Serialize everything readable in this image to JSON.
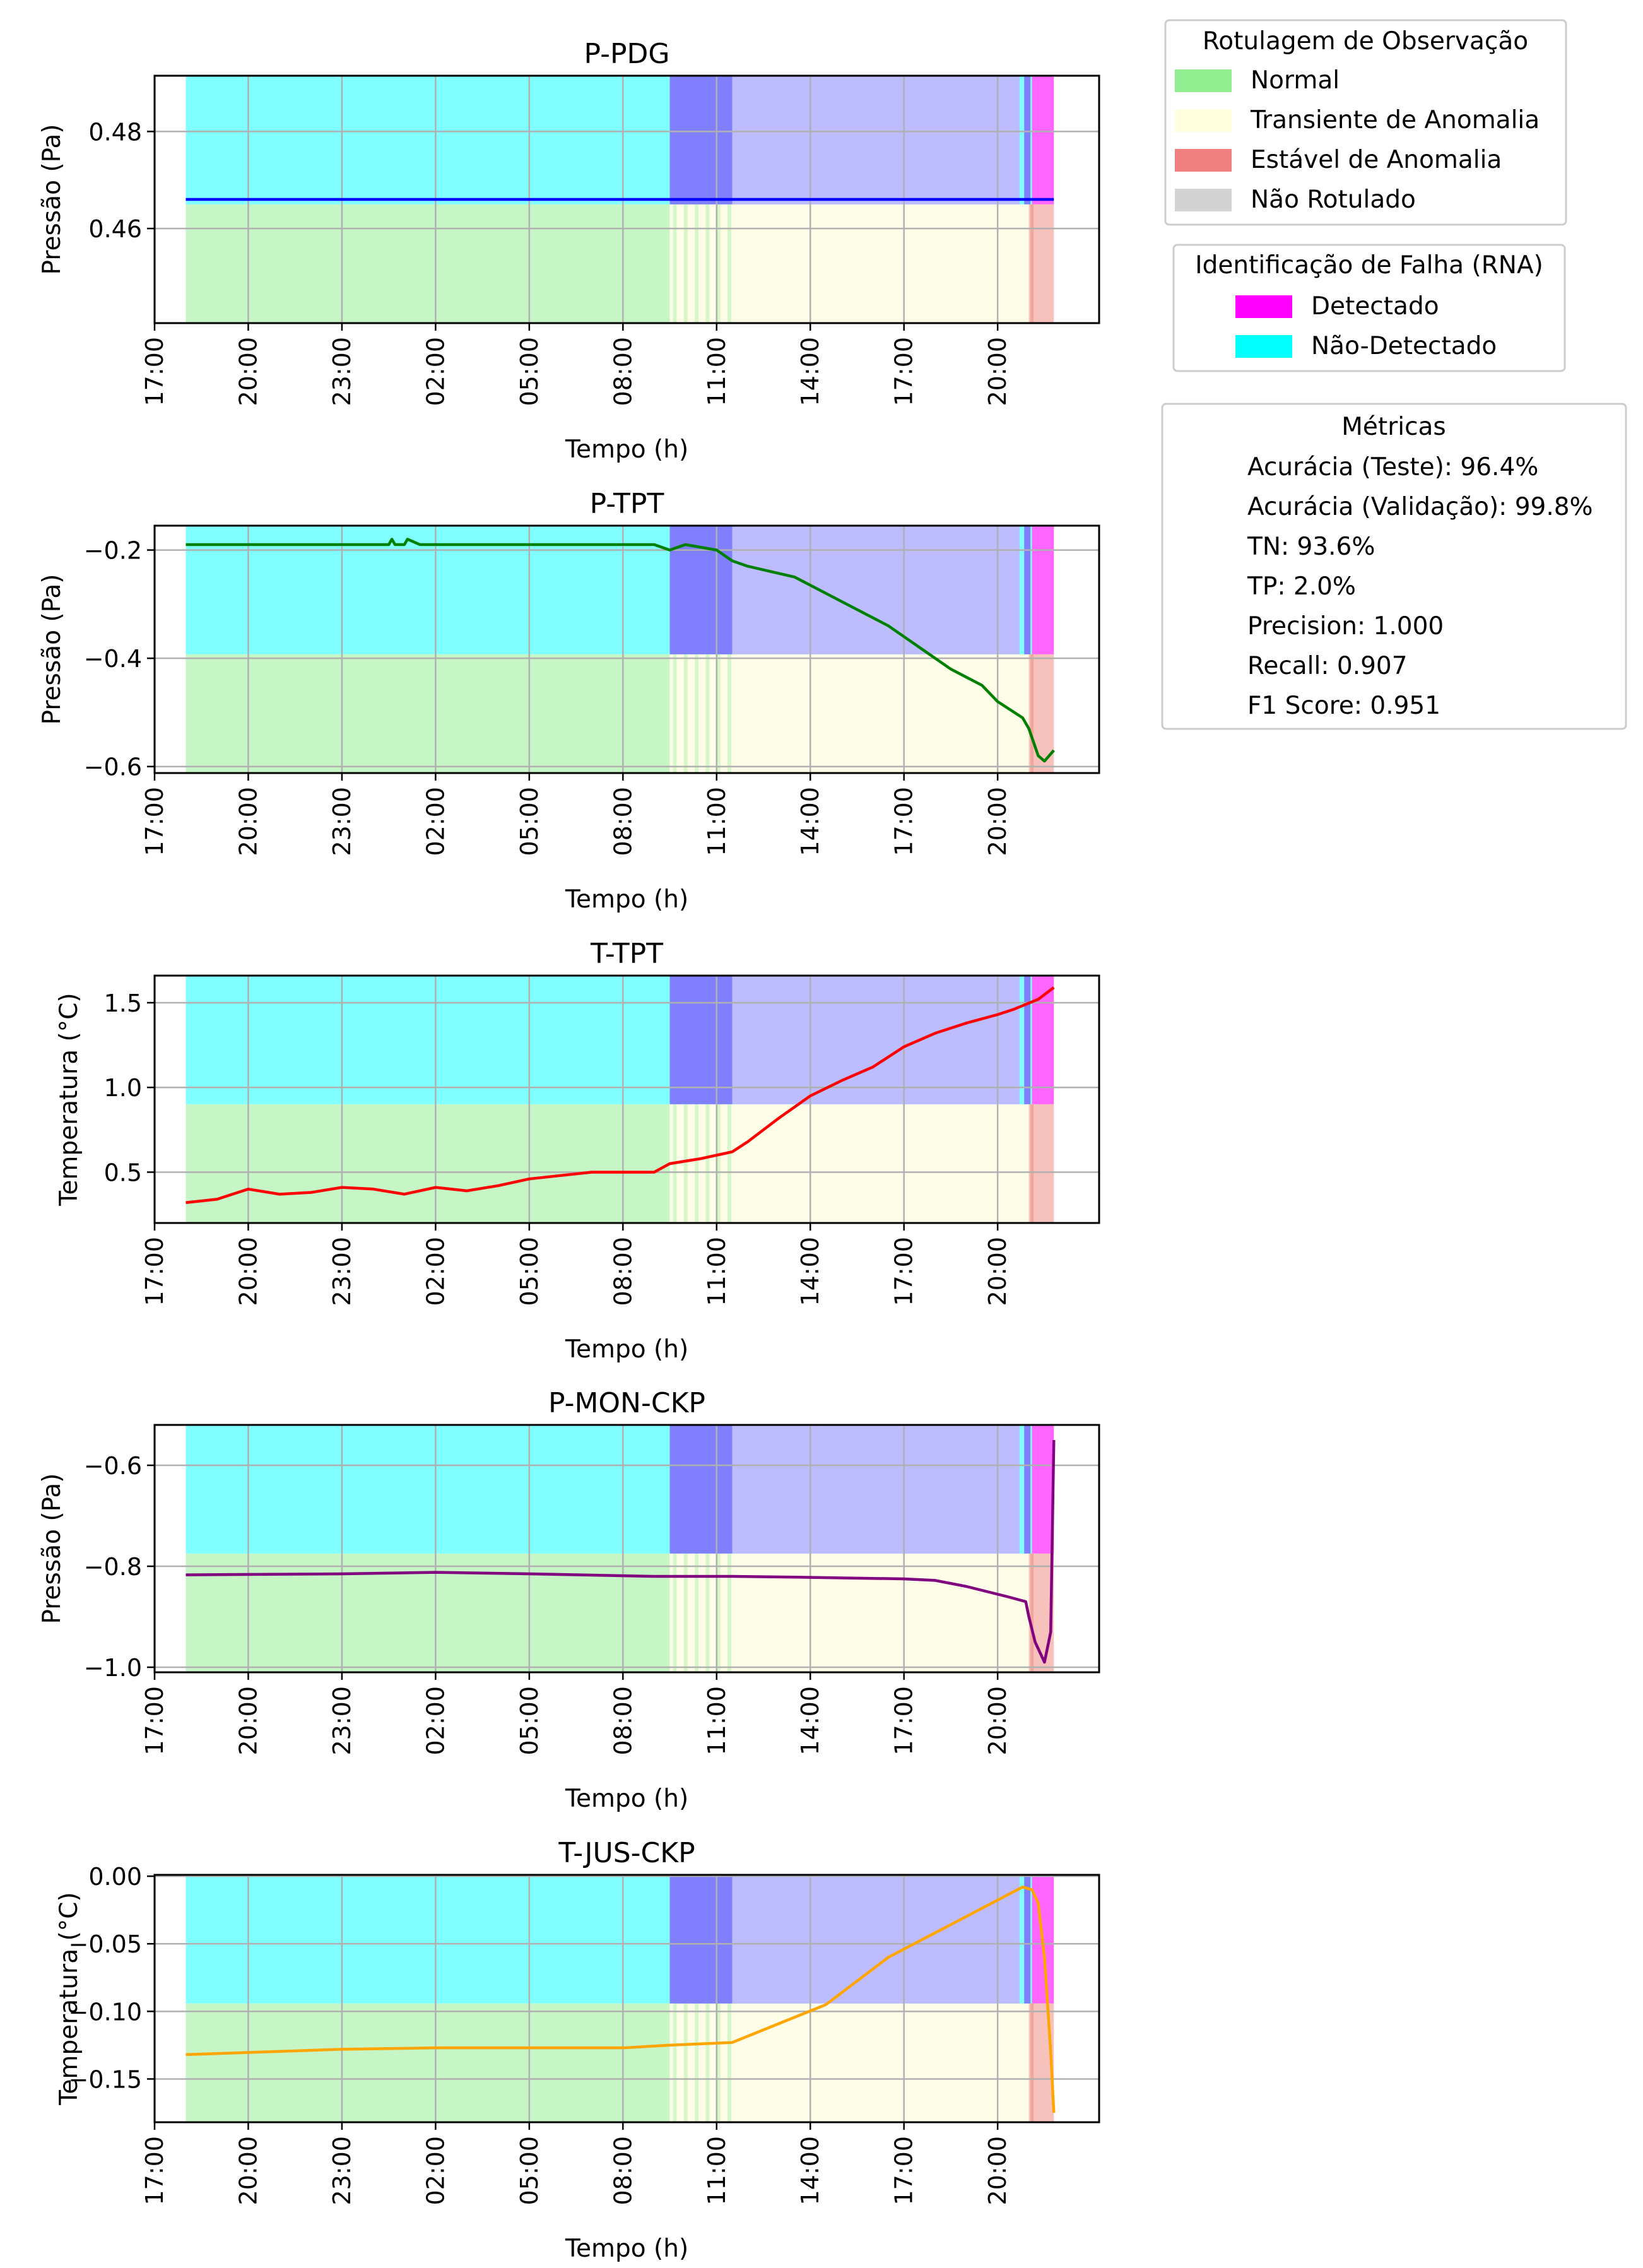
{
  "time_axis_ticks": [
    "17:00",
    "20:00",
    "23:00",
    "02:00",
    "05:00",
    "08:00",
    "11:00",
    "14:00",
    "17:00",
    "20:00"
  ],
  "xlabel": "Tempo (h)",
  "legend_observation": {
    "title": "Rotulagem de Observação",
    "items": [
      {
        "label": "Normal",
        "color": "#90ee90"
      },
      {
        "label": "Transiente de Anomalia",
        "color": "#ffffe0"
      },
      {
        "label": "Estável de Anomalia",
        "color": "#f08080"
      },
      {
        "label": "Não Rotulado",
        "color": "#d3d3d3"
      }
    ]
  },
  "legend_fault": {
    "title": "Identificação de Falha (RNA)",
    "items": [
      {
        "label": "Detectado",
        "color": "#ff00ff"
      },
      {
        "label": "Não-Detectado",
        "color": "#00ffff"
      }
    ]
  },
  "metrics": {
    "title": "Métricas",
    "lines": [
      "Acurácia (Teste): 96.4%",
      "Acurácia (Validação): 99.8%",
      "TN: 93.6%",
      "TP: 2.0%",
      "Precision: 1.000",
      "Recall: 0.907",
      "F1 Score: 0.951"
    ]
  },
  "bands": {
    "normal_hours": [
      0,
      15.5
    ],
    "transient_hours": [
      15.5,
      27.0
    ],
    "stable_hours": [
      27.0,
      27.8
    ],
    "undetected_hours": [
      0,
      27.1
    ],
    "detected_hours": [
      27.1,
      27.8
    ],
    "validation_overlay_hours": [
      15.5,
      17.5
    ],
    "test_overlay_hours": [
      17.5,
      26.7
    ]
  },
  "colors": {
    "normal": "#c6f5c6",
    "transient": "#fefee8",
    "stable": "#f7c2bb",
    "undetected": "#7fffff",
    "detected": "#ff66ff",
    "overlay_validation": "#8080ff",
    "overlay_test": "#bcbcff"
  },
  "chart_data": [
    {
      "type": "line",
      "title": "P-PDG",
      "ylabel": "Pressão (Pa)",
      "ylim": [
        0.4405,
        0.4915
      ],
      "yticks": [
        0.46,
        0.48
      ],
      "ytick_labels": [
        "0.46",
        "0.48"
      ],
      "color": "#0000ff",
      "x_hours": [
        0,
        27.8
      ],
      "y": [
        0.466,
        0.466
      ]
    },
    {
      "type": "line",
      "title": "P-TPT",
      "ylabel": "Pressão (Pa)",
      "ylim": [
        -0.612,
        -0.155
      ],
      "yticks": [
        -0.6,
        -0.4,
        -0.2
      ],
      "ytick_labels": [
        "−0.6",
        "−0.4",
        "−0.2"
      ],
      "color": "#008000",
      "x_hours": [
        0,
        6.5,
        6.6,
        6.7,
        7.0,
        7.1,
        7.5,
        7.6,
        15.0,
        15.5,
        16.0,
        17.0,
        17.5,
        18.0,
        19.5,
        20.5,
        21.5,
        22.5,
        23.5,
        24.5,
        25.5,
        26.0,
        26.8,
        27.0,
        27.3,
        27.5,
        27.8
      ],
      "y": [
        -0.19,
        -0.19,
        -0.18,
        -0.19,
        -0.19,
        -0.18,
        -0.19,
        -0.19,
        -0.19,
        -0.2,
        -0.19,
        -0.2,
        -0.22,
        -0.23,
        -0.25,
        -0.28,
        -0.31,
        -0.34,
        -0.38,
        -0.42,
        -0.45,
        -0.48,
        -0.51,
        -0.53,
        -0.58,
        -0.59,
        -0.57
      ]
    },
    {
      "type": "line",
      "title": "T-TPT",
      "ylabel": "Temperatura (°C)",
      "ylim": [
        0.2,
        1.66
      ],
      "yticks": [
        0.5,
        1.0,
        1.5
      ],
      "ytick_labels": [
        "0.5",
        "1.0",
        "1.5"
      ],
      "color": "#ff0000",
      "x_hours": [
        0,
        1,
        2,
        3,
        4,
        5,
        6,
        7,
        8,
        9,
        10,
        11,
        12,
        13,
        14,
        15,
        15.5,
        16.5,
        17.5,
        18,
        19,
        20,
        21,
        22,
        23,
        24,
        25,
        26,
        26.5,
        27.3,
        27.8
      ],
      "y": [
        0.32,
        0.34,
        0.4,
        0.37,
        0.38,
        0.41,
        0.4,
        0.37,
        0.41,
        0.39,
        0.42,
        0.46,
        0.48,
        0.5,
        0.5,
        0.5,
        0.55,
        0.58,
        0.62,
        0.68,
        0.82,
        0.95,
        1.04,
        1.12,
        1.24,
        1.32,
        1.38,
        1.43,
        1.46,
        1.52,
        1.59
      ]
    },
    {
      "type": "line",
      "title": "P-MON-CKP",
      "ylabel": "Pressão (Pa)",
      "ylim": [
        -1.01,
        -0.52
      ],
      "yticks": [
        -1.0,
        -0.8,
        -0.6
      ],
      "ytick_labels": [
        "−1.0",
        "−0.8",
        "−0.6"
      ],
      "color": "#800080",
      "x_hours": [
        0,
        5,
        8,
        11,
        15,
        17.5,
        20,
        23,
        24,
        25,
        26.3,
        26.9,
        27.0,
        27.2,
        27.5,
        27.7,
        27.8
      ],
      "y": [
        -0.817,
        -0.815,
        -0.812,
        -0.815,
        -0.82,
        -0.82,
        -0.822,
        -0.825,
        -0.828,
        -0.84,
        -0.86,
        -0.87,
        -0.9,
        -0.95,
        -0.99,
        -0.93,
        -0.55
      ]
    },
    {
      "type": "line",
      "title": "T-JUS-CKP",
      "ylabel": "Temperatura (°C)",
      "ylim": [
        -0.182,
        0.001
      ],
      "yticks": [
        -0.15,
        -0.1,
        -0.05,
        0.0
      ],
      "ytick_labels": [
        "−0.15",
        "−0.10",
        "−0.05",
        "0.00"
      ],
      "color": "#ffa500",
      "x_hours": [
        0,
        5,
        8,
        11,
        14,
        15.5,
        17.5,
        20.5,
        22.5,
        26.8,
        27.1,
        27.3,
        27.5,
        27.7,
        27.8
      ],
      "y": [
        -0.132,
        -0.128,
        -0.127,
        -0.127,
        -0.127,
        -0.125,
        -0.123,
        -0.095,
        -0.06,
        -0.008,
        -0.01,
        -0.02,
        -0.06,
        -0.13,
        -0.175
      ]
    }
  ]
}
